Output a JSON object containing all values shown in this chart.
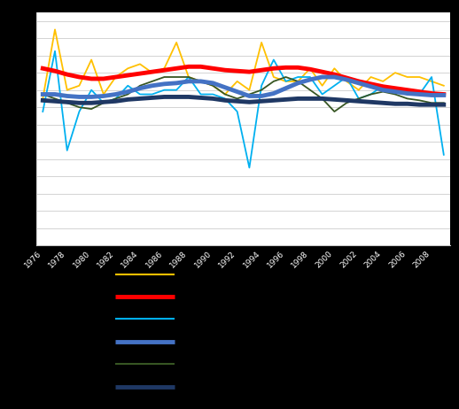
{
  "years": [
    1976,
    1977,
    1978,
    1979,
    1980,
    1981,
    1982,
    1983,
    1984,
    1985,
    1986,
    1987,
    1988,
    1989,
    1990,
    1991,
    1992,
    1993,
    1994,
    1995,
    1996,
    1997,
    1998,
    1999,
    2000,
    2001,
    2002,
    2003,
    2004,
    2005,
    2006,
    2007,
    2008,
    2009
  ],
  "yellow": [
    3.0,
    11.0,
    4.0,
    4.5,
    7.5,
    3.5,
    5.5,
    6.5,
    7.0,
    6.0,
    6.5,
    9.5,
    5.5,
    5.0,
    4.5,
    3.5,
    5.0,
    4.0,
    9.5,
    5.5,
    5.0,
    5.0,
    6.5,
    4.5,
    6.5,
    5.0,
    4.0,
    5.5,
    5.0,
    6.0,
    5.5,
    5.5,
    5.0,
    4.5
  ],
  "red_smooth": [
    6.5,
    6.2,
    5.8,
    5.5,
    5.3,
    5.3,
    5.5,
    5.7,
    5.9,
    6.1,
    6.3,
    6.5,
    6.7,
    6.7,
    6.5,
    6.3,
    6.2,
    6.1,
    6.3,
    6.5,
    6.6,
    6.6,
    6.4,
    6.1,
    5.8,
    5.4,
    5.0,
    4.7,
    4.4,
    4.2,
    4.0,
    3.8,
    3.6,
    3.5
  ],
  "light_blue": [
    1.5,
    8.5,
    -3.0,
    1.5,
    4.0,
    2.5,
    3.0,
    4.5,
    3.5,
    3.5,
    4.0,
    4.0,
    5.5,
    3.5,
    3.5,
    3.0,
    1.5,
    -5.0,
    4.5,
    7.5,
    5.0,
    5.5,
    5.5,
    3.5,
    4.5,
    5.5,
    3.0,
    3.5,
    4.5,
    4.0,
    3.5,
    3.5,
    5.5,
    -3.5
  ],
  "blue_smooth": [
    3.5,
    3.5,
    3.3,
    3.2,
    3.2,
    3.3,
    3.5,
    3.8,
    4.2,
    4.5,
    4.7,
    4.8,
    5.0,
    5.0,
    4.8,
    4.3,
    3.8,
    3.3,
    3.3,
    3.6,
    4.2,
    4.8,
    5.2,
    5.5,
    5.5,
    5.2,
    4.8,
    4.4,
    4.0,
    3.8,
    3.6,
    3.5,
    3.4,
    3.4
  ],
  "green": [
    3.5,
    3.0,
    2.5,
    2.0,
    1.8,
    2.5,
    3.0,
    3.5,
    4.5,
    5.0,
    5.5,
    5.5,
    5.5,
    5.0,
    4.5,
    3.5,
    3.0,
    3.5,
    4.0,
    5.0,
    5.5,
    5.0,
    4.0,
    3.0,
    1.5,
    2.5,
    3.0,
    3.5,
    3.8,
    3.5,
    3.0,
    2.8,
    2.5,
    2.5
  ],
  "navy_smooth": [
    2.8,
    2.7,
    2.6,
    2.5,
    2.5,
    2.6,
    2.7,
    2.9,
    3.0,
    3.1,
    3.2,
    3.2,
    3.2,
    3.1,
    3.0,
    2.8,
    2.7,
    2.6,
    2.7,
    2.8,
    2.9,
    3.0,
    3.0,
    3.0,
    2.9,
    2.8,
    2.7,
    2.6,
    2.5,
    2.4,
    2.4,
    2.3,
    2.3,
    2.3
  ],
  "colors": {
    "yellow": "#FFC000",
    "red": "#FF0000",
    "light_blue": "#00B0F0",
    "blue": "#4472C4",
    "green": "#375623",
    "navy": "#1F3864"
  },
  "background_top": "#000000",
  "plot_bg": "#FFFFFF",
  "legend_bg": "#000000",
  "ylim": [
    -14,
    13
  ],
  "ytick_count": 14,
  "xtick_years": [
    1976,
    1978,
    1980,
    1982,
    1984,
    1986,
    1988,
    1990,
    1992,
    1994,
    1996,
    1998,
    2000,
    2002,
    2004,
    2006,
    2008
  ],
  "grid_color": "#CCCCCC",
  "tick_color": "#888888"
}
